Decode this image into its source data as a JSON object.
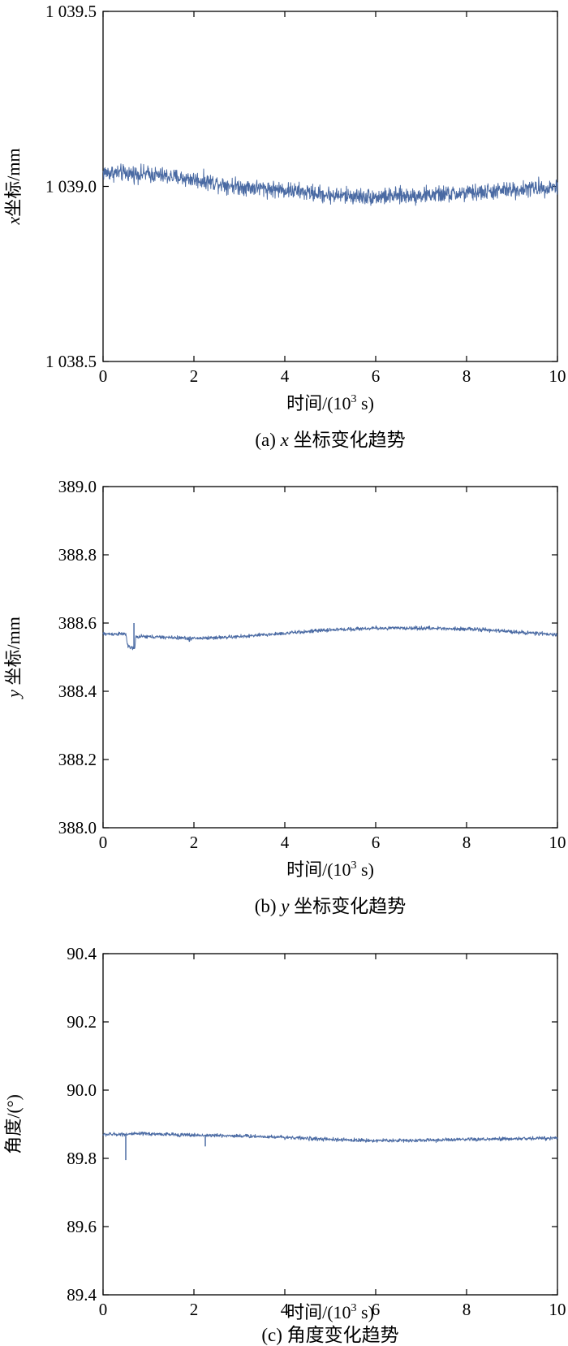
{
  "chart_data": [
    {
      "type": "line",
      "caption": {
        "label": "(a)",
        "var": "x",
        "text": "坐标变化趋势"
      },
      "ylabel": {
        "var": "x",
        "text": "坐标/mm"
      },
      "xlabel": {
        "text": "时间/(10",
        "sup": "3",
        "unit": " s)"
      },
      "xlim": [
        0,
        10
      ],
      "ylim": [
        1038.5,
        1039.5
      ],
      "xticks": [
        0,
        2,
        4,
        6,
        8,
        10
      ],
      "xtick_labels": [
        "0",
        "2",
        "4",
        "6",
        "8",
        "10"
      ],
      "yticks": [
        1038.5,
        1039.0,
        1039.5
      ],
      "ytick_labels": [
        "1 038.5",
        "1 039.0",
        "1 039.5"
      ],
      "color": "#4a6aa3",
      "series": [
        {
          "x": [
            0,
            1,
            2,
            3,
            4,
            5,
            6,
            7,
            8,
            9,
            10
          ],
          "values": [
            1039.04,
            1039.035,
            1039.02,
            1039.0,
            1038.99,
            1038.975,
            1038.97,
            1038.975,
            1038.98,
            1038.99,
            1039.0
          ],
          "noise": 0.035,
          "spikes": []
        }
      ]
    },
    {
      "type": "line",
      "caption": {
        "label": "(b)",
        "var": "y",
        "text": "坐标变化趋势"
      },
      "ylabel": {
        "var": "y",
        "text": "坐标/mm"
      },
      "xlabel": {
        "text": "时间/(10",
        "sup": "3",
        "unit": " s)"
      },
      "xlim": [
        0,
        10
      ],
      "ylim": [
        388.0,
        389.0
      ],
      "xticks": [
        0,
        2,
        4,
        6,
        8,
        10
      ],
      "xtick_labels": [
        "0",
        "2",
        "4",
        "6",
        "8",
        "10"
      ],
      "yticks": [
        388.0,
        388.2,
        388.4,
        388.6,
        388.8,
        389.0
      ],
      "ytick_labels": [
        "388.0",
        "388.2",
        "388.4",
        "388.6",
        "388.8",
        "389.0"
      ],
      "color": "#4a6aa3",
      "series": [
        {
          "x": [
            0,
            0.5,
            0.55,
            0.7,
            0.72,
            1,
            2,
            3,
            4,
            5,
            6,
            7,
            8,
            9,
            10
          ],
          "values": [
            388.568,
            388.568,
            388.53,
            388.525,
            388.56,
            388.56,
            388.555,
            388.56,
            388.57,
            388.58,
            388.585,
            388.585,
            388.583,
            388.575,
            388.565
          ],
          "noise": 0.008,
          "spikes": [
            [
              0.68,
              388.6
            ],
            [
              1.9,
              388.545
            ]
          ]
        }
      ]
    },
    {
      "type": "line",
      "caption": {
        "label": "(c)",
        "var": "",
        "text": "角度变化趋势"
      },
      "ylabel": {
        "var": "",
        "text": "角度/(°)"
      },
      "xlabel": {
        "text": "时间/(10",
        "sup": "3",
        "unit": " s)"
      },
      "xlim": [
        0,
        10
      ],
      "ylim": [
        89.4,
        90.4
      ],
      "xticks": [
        0,
        2,
        4,
        6,
        8,
        10
      ],
      "xtick_labels": [
        "0",
        "2",
        "4",
        "6",
        "8",
        "10"
      ],
      "yticks": [
        89.4,
        89.6,
        89.8,
        90.0,
        90.2,
        90.4
      ],
      "ytick_labels": [
        "89.4",
        "89.6",
        "89.8",
        "90.0",
        "90.2",
        "90.4"
      ],
      "color": "#4a6aa3",
      "series": [
        {
          "x": [
            0,
            1,
            2,
            3,
            4,
            5,
            6,
            7,
            8,
            9,
            10
          ],
          "values": [
            89.87,
            89.872,
            89.868,
            89.866,
            89.862,
            89.855,
            89.852,
            89.853,
            89.855,
            89.857,
            89.86
          ],
          "noise": 0.008,
          "spikes": [
            [
              0.5,
              89.795
            ],
            [
              2.25,
              89.835
            ]
          ]
        }
      ]
    }
  ]
}
